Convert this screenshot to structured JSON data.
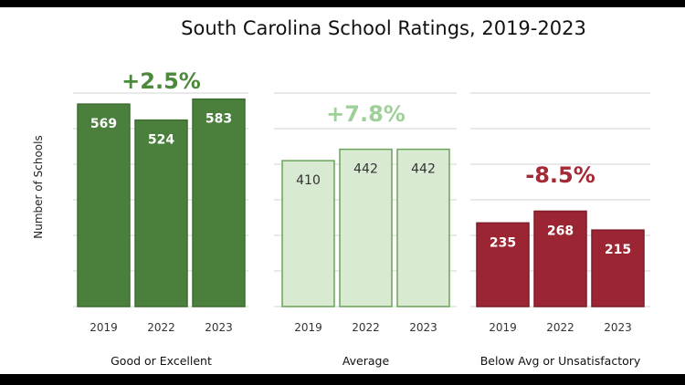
{
  "chart_data": {
    "type": "bar",
    "title": "South Carolina School Ratings, 2019-2023",
    "ylabel": "Number of Schools",
    "ylim": [
      0,
      600
    ],
    "grid": true,
    "categories": [
      "2019",
      "2022",
      "2023"
    ],
    "panels": [
      {
        "label": "Good or Excellent",
        "values": [
          569,
          524,
          583
        ],
        "change": "+2.5%",
        "fill": "#4a7f3c",
        "stroke": "#3e6d32",
        "value_color": "#ffffff",
        "change_color": "#4a8a3a"
      },
      {
        "label": "Average",
        "values": [
          410,
          442,
          442
        ],
        "change": "+7.8%",
        "fill": "#d9ead3",
        "stroke": "#6aa35a",
        "value_color": "#333333",
        "change_color": "#9fd09a"
      },
      {
        "label": "Below Avg or Unsatisfactory",
        "values": [
          235,
          268,
          215
        ],
        "change": "-8.5%",
        "fill": "#9c2533",
        "stroke": "#7d1c28",
        "value_color": "#ffffff",
        "change_color": "#a52a35"
      }
    ]
  }
}
